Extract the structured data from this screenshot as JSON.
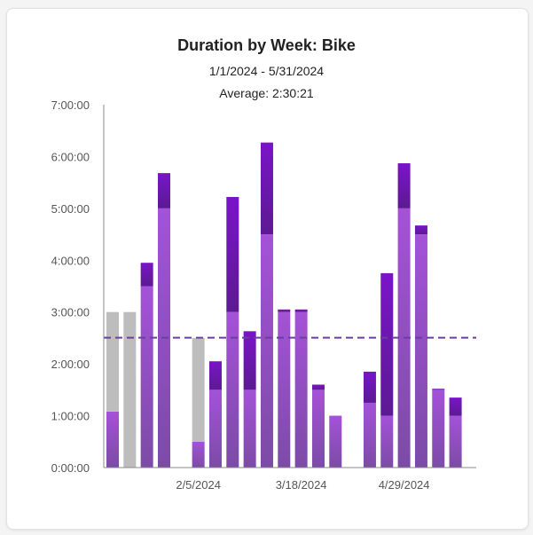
{
  "title": "Duration by Week: Bike",
  "date_range": "1/1/2024 - 5/31/2024",
  "average_label": "Average: 2:30:21",
  "colors": {
    "dark_purple": "#6a12b0",
    "light_purple": "#9a4ed0",
    "grey": "#bdbdbd",
    "average_line": "#6b3fa0"
  },
  "chart_data": {
    "type": "bar",
    "stacked": true,
    "title": "Duration by Week: Bike",
    "subtitle": "1/1/2024 - 5/31/2024",
    "average": "2:30:21",
    "average_hours": 2.506,
    "ylim": [
      0,
      7
    ],
    "y_ticks": [
      "0:00:00",
      "1:00:00",
      "2:00:00",
      "3:00:00",
      "4:00:00",
      "5:00:00",
      "6:00:00",
      "7:00:00"
    ],
    "x_tick_labels": [
      {
        "week_index": 5,
        "label": "2/5/2024"
      },
      {
        "week_index": 11,
        "label": "3/18/2024"
      },
      {
        "week_index": 17,
        "label": "4/29/2024"
      }
    ],
    "weeks": [
      {
        "light": 1.08,
        "dark": 0,
        "grey": 1.92
      },
      {
        "light": 0,
        "dark": 0,
        "grey": 3.0
      },
      {
        "light": 3.5,
        "dark": 0.45,
        "grey": 0
      },
      {
        "light": 5.0,
        "dark": 0.68,
        "grey": 0
      },
      {
        "light": 0,
        "dark": 0,
        "grey": 0
      },
      {
        "light": 0.5,
        "dark": 0,
        "grey": 2.0
      },
      {
        "light": 1.5,
        "dark": 0.55,
        "grey": 0
      },
      {
        "light": 3.0,
        "dark": 2.22,
        "grey": 0
      },
      {
        "light": 1.5,
        "dark": 1.13,
        "grey": 0
      },
      {
        "light": 4.5,
        "dark": 1.77,
        "grey": 0
      },
      {
        "light": 3.0,
        "dark": 0.05,
        "grey": 0
      },
      {
        "light": 3.0,
        "dark": 0.05,
        "grey": 0
      },
      {
        "light": 1.5,
        "dark": 0.1,
        "grey": 0
      },
      {
        "light": 1.0,
        "dark": 0,
        "grey": 0
      },
      {
        "light": 0,
        "dark": 0,
        "grey": 0
      },
      {
        "light": 1.25,
        "dark": 0.6,
        "grey": 0
      },
      {
        "light": 1.0,
        "dark": 2.75,
        "grey": 0
      },
      {
        "light": 5.0,
        "dark": 0.87,
        "grey": 0
      },
      {
        "light": 4.5,
        "dark": 0.17,
        "grey": 0
      },
      {
        "light": 1.5,
        "dark": 0.02,
        "grey": 0
      },
      {
        "light": 1.0,
        "dark": 0.35,
        "grey": 0
      }
    ]
  }
}
